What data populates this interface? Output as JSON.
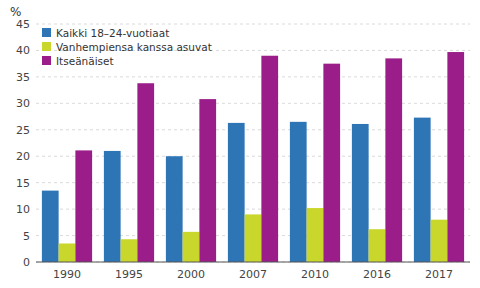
{
  "chart_data": {
    "type": "bar",
    "ylabel": "%",
    "categories": [
      "1990",
      "1995",
      "2000",
      "2007",
      "2010",
      "2016",
      "2017"
    ],
    "series": [
      {
        "name": "Kaikki 18–24-vuotiaat",
        "color": "#2E75B6",
        "values": [
          13.5,
          21.0,
          20.0,
          26.3,
          26.5,
          26.1,
          27.3
        ]
      },
      {
        "name": "Vanhempiensa kanssa asuvat",
        "color": "#C9D62C",
        "values": [
          3.5,
          4.3,
          5.7,
          9.0,
          10.2,
          6.2,
          8.0
        ]
      },
      {
        "name": "Itseänäiset",
        "color": "#9B1D8A",
        "values": [
          21.1,
          33.8,
          30.8,
          39.0,
          37.5,
          38.5,
          39.7
        ]
      }
    ],
    "ylim": [
      0,
      45
    ],
    "yticks": [
      0,
      5,
      10,
      15,
      20,
      25,
      30,
      35,
      40,
      45
    ],
    "grid": true,
    "legend": "upper left"
  }
}
